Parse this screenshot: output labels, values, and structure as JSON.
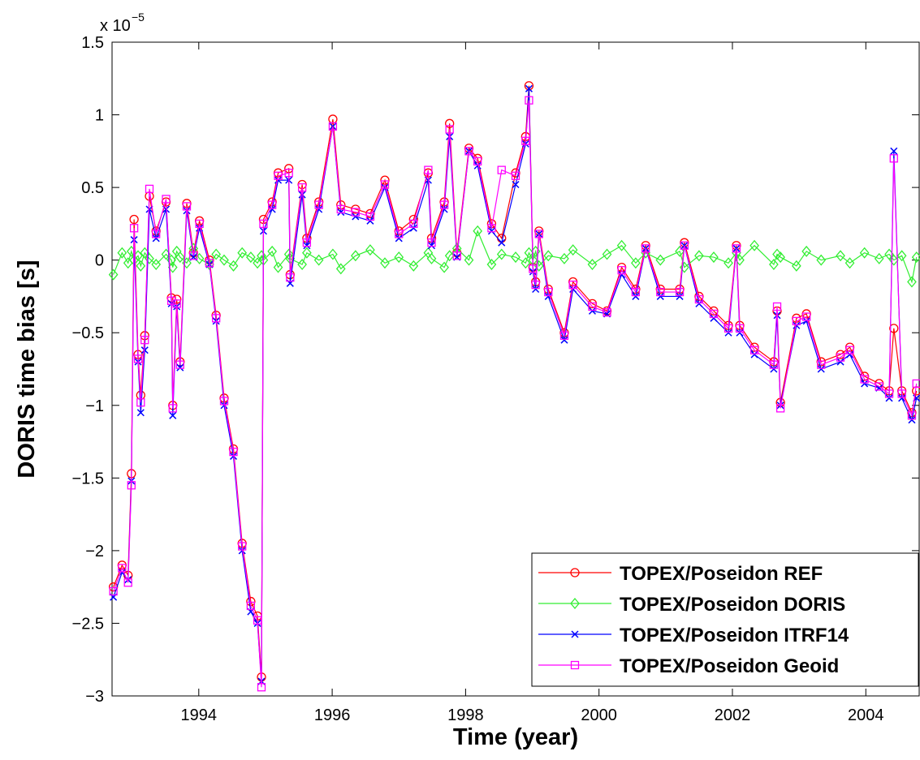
{
  "chart_data": {
    "type": "line",
    "y_label": "DORIS time bias [s]",
    "x_label": "Time (year)",
    "y_multiplier": {
      "base": "x 10",
      "exponent": "−5"
    },
    "xlim": [
      1992.7,
      2004.8
    ],
    "xticks": [
      1994,
      1996,
      1998,
      2000,
      2002,
      2004
    ],
    "ylim": [
      -3,
      1.5
    ],
    "yticks": [
      {
        "value": -3,
        "label": "−3"
      },
      {
        "value": -2.5,
        "label": "−2.5"
      },
      {
        "value": -2,
        "label": "−2"
      },
      {
        "value": -1.5,
        "label": "−1.5"
      },
      {
        "value": -1,
        "label": "−1"
      },
      {
        "value": -0.5,
        "label": "−0.5"
      },
      0,
      0.5,
      1,
      1.5
    ],
    "grid": false,
    "legend_position": "lower right",
    "x": [
      1992.72,
      1992.85,
      1992.94,
      1992.99,
      1993.03,
      1993.09,
      1993.13,
      1993.19,
      1993.26,
      1993.36,
      1993.51,
      1993.59,
      1993.61,
      1993.67,
      1993.72,
      1993.82,
      1993.92,
      1994.01,
      1994.16,
      1994.26,
      1994.38,
      1994.52,
      1994.65,
      1994.78,
      1994.88,
      1994.94,
      1994.97,
      1995.1,
      1995.19,
      1995.35,
      1995.37,
      1995.55,
      1995.62,
      1995.8,
      1996.01,
      1996.13,
      1996.35,
      1996.57,
      1996.79,
      1997.0,
      1997.22,
      1997.44,
      1997.49,
      1997.68,
      1997.76,
      1997.87,
      1998.05,
      1998.18,
      1998.39,
      1998.54,
      1998.75,
      1998.9,
      1998.95,
      1999.01,
      1999.05,
      1999.1,
      1999.24,
      1999.48,
      1999.61,
      1999.9,
      2000.12,
      2000.34,
      2000.55,
      2000.7,
      2000.92,
      2001.21,
      2001.28,
      2001.5,
      2001.72,
      2001.94,
      2002.06,
      2002.11,
      2002.33,
      2002.62,
      2002.67,
      2002.72,
      2002.96,
      2003.11,
      2003.33,
      2003.62,
      2003.76,
      2003.98,
      2004.2,
      2004.35,
      2004.42,
      2004.54,
      2004.69,
      2004.76
    ],
    "series": [
      {
        "name": "TOPEX/Poseidon REF",
        "color": "#ff0000",
        "marker": "o",
        "values": [
          -2.25,
          -2.1,
          -2.17,
          -1.47,
          0.28,
          -0.65,
          -0.93,
          -0.52,
          0.44,
          0.2,
          0.4,
          -0.26,
          -1.0,
          -0.27,
          -0.7,
          0.39,
          0.05,
          0.27,
          0.0,
          -0.38,
          -0.95,
          -1.3,
          -1.95,
          -2.35,
          -2.45,
          -2.87,
          0.28,
          0.4,
          0.6,
          0.63,
          -0.1,
          0.52,
          0.15,
          0.4,
          0.97,
          0.38,
          0.35,
          0.32,
          0.55,
          0.2,
          0.28,
          0.6,
          0.15,
          0.4,
          0.94,
          0.05,
          0.77,
          0.7,
          0.25,
          0.15,
          0.6,
          0.85,
          1.2,
          -0.05,
          -0.15,
          0.2,
          -0.2,
          -0.5,
          -0.15,
          -0.3,
          -0.35,
          -0.05,
          -0.2,
          0.1,
          -0.2,
          -0.2,
          0.12,
          -0.25,
          -0.35,
          -0.45,
          0.1,
          -0.45,
          -0.6,
          -0.7,
          -0.35,
          -0.98,
          -0.4,
          -0.37,
          -0.7,
          -0.65,
          -0.6,
          -0.8,
          -0.85,
          -0.9,
          -0.47,
          -0.9,
          -1.05,
          -0.9
        ]
      },
      {
        "name": "TOPEX/Poseidon DORIS",
        "color": "#33ee33",
        "marker": "d",
        "values": [
          -0.1,
          0.05,
          -0.02,
          0.06,
          0.0,
          0.03,
          -0.04,
          0.05,
          0.01,
          -0.03,
          0.04,
          0.0,
          -0.05,
          0.06,
          0.02,
          -0.02,
          0.08,
          0.01,
          -0.03,
          0.04,
          0.0,
          -0.04,
          0.05,
          0.02,
          -0.02,
          0.03,
          0.0,
          0.06,
          -0.05,
          0.04,
          0.01,
          -0.03,
          0.05,
          0.0,
          0.04,
          -0.06,
          0.03,
          0.07,
          -0.02,
          0.02,
          -0.04,
          0.05,
          0.01,
          -0.05,
          0.03,
          0.08,
          0.0,
          0.2,
          -0.03,
          0.04,
          0.02,
          -0.02,
          0.05,
          0.0,
          0.06,
          -0.04,
          0.03,
          0.01,
          0.07,
          -0.03,
          0.04,
          0.1,
          -0.02,
          0.05,
          0.0,
          0.06,
          -0.05,
          0.03,
          0.02,
          -0.02,
          0.05,
          0.0,
          0.1,
          -0.03,
          0.04,
          0.02,
          -0.04,
          0.06,
          0.0,
          0.03,
          -0.02,
          0.05,
          0.01,
          0.04,
          0.0,
          0.03,
          -0.15,
          0.02
        ]
      },
      {
        "name": "TOPEX/Poseidon ITRF14",
        "color": "#0000ff",
        "marker": "x",
        "values": [
          -2.32,
          -2.15,
          -2.2,
          -1.52,
          0.14,
          -0.7,
          -1.05,
          -0.62,
          0.35,
          0.15,
          0.35,
          -0.3,
          -1.07,
          -0.32,
          -0.74,
          0.34,
          0.02,
          0.22,
          -0.03,
          -0.42,
          -1.0,
          -1.35,
          -2.0,
          -2.42,
          -2.5,
          -2.9,
          0.2,
          0.35,
          0.55,
          0.55,
          -0.16,
          0.45,
          0.1,
          0.35,
          0.92,
          0.33,
          0.3,
          0.27,
          0.5,
          0.15,
          0.22,
          0.55,
          0.1,
          0.35,
          0.85,
          0.02,
          0.75,
          0.65,
          0.2,
          0.12,
          0.52,
          0.8,
          1.18,
          -0.08,
          -0.2,
          0.18,
          -0.25,
          -0.55,
          -0.2,
          -0.35,
          -0.37,
          -0.1,
          -0.25,
          0.08,
          -0.25,
          -0.25,
          0.1,
          -0.3,
          -0.4,
          -0.5,
          0.08,
          -0.5,
          -0.65,
          -0.75,
          -0.38,
          -1.0,
          -0.45,
          -0.42,
          -0.75,
          -0.7,
          -0.65,
          -0.85,
          -0.88,
          -0.95,
          0.75,
          -0.95,
          -1.1,
          -0.95
        ]
      },
      {
        "name": "TOPEX/Poseidon Geoid",
        "color": "#ff00ff",
        "marker": "s",
        "values": [
          -2.28,
          -2.12,
          -2.22,
          -1.55,
          0.22,
          -0.68,
          -0.98,
          -0.55,
          0.49,
          0.18,
          0.42,
          -0.28,
          -1.02,
          -0.3,
          -0.72,
          0.37,
          0.03,
          0.25,
          -0.02,
          -0.4,
          -0.97,
          -1.32,
          -1.97,
          -2.38,
          -2.48,
          -2.94,
          0.25,
          0.38,
          0.58,
          0.6,
          -0.12,
          0.5,
          0.12,
          0.38,
          0.92,
          0.35,
          0.33,
          0.3,
          0.52,
          0.18,
          0.25,
          0.62,
          0.12,
          0.38,
          0.9,
          0.03,
          0.75,
          0.68,
          0.22,
          0.62,
          0.58,
          0.82,
          1.1,
          -0.06,
          -0.17,
          0.18,
          -0.22,
          -0.52,
          -0.17,
          -0.32,
          -0.36,
          -0.07,
          -0.22,
          0.08,
          -0.22,
          -0.22,
          0.1,
          -0.27,
          -0.37,
          -0.47,
          0.08,
          -0.47,
          -0.62,
          -0.72,
          -0.32,
          -1.02,
          -0.42,
          -0.39,
          -0.72,
          -0.67,
          -0.62,
          -0.82,
          -0.87,
          -0.92,
          0.7,
          -0.92,
          -1.07,
          -0.85
        ]
      }
    ]
  }
}
